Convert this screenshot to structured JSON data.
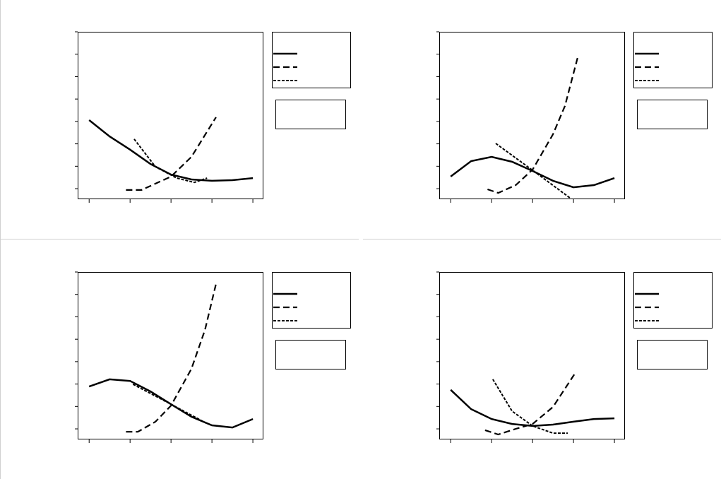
{
  "chart_data": [
    {
      "type": "line",
      "xlim": [
        -0.28,
        4.24
      ],
      "ylim": [
        -0.44,
        7
      ],
      "xticks": [
        0,
        1,
        2,
        3,
        4
      ],
      "yticks": [
        0,
        1,
        2,
        3,
        4,
        5,
        6,
        7
      ],
      "series": [
        {
          "color": "#000000",
          "dash": "solid",
          "x": [
            0,
            0.5,
            1,
            1.5,
            2,
            2.5,
            3,
            3.5,
            4
          ],
          "values": [
            3.06,
            2.33,
            1.74,
            1.1,
            0.63,
            0.41,
            0.35,
            0.38,
            0.47
          ]
        },
        {
          "color": "#000000",
          "dash": "dashed",
          "x": [
            0.9,
            1.28,
            2,
            2.5,
            3.1
          ],
          "values": [
            -0.06,
            -0.06,
            0.54,
            1.42,
            3.19
          ]
        },
        {
          "color": "#000000",
          "dash": "dotted",
          "x": [
            1.1,
            1.62,
            2.14,
            2.57,
            2.88
          ],
          "values": [
            2.21,
            0.98,
            0.47,
            0.28,
            0.47
          ]
        }
      ]
    },
    {
      "type": "line",
      "xlim": [
        -0.28,
        4.24
      ],
      "ylim": [
        -0.44,
        7
      ],
      "xticks": [
        0,
        1,
        2,
        3,
        4
      ],
      "yticks": [
        0,
        1,
        2,
        3,
        4,
        5,
        6,
        7
      ],
      "series": [
        {
          "color": "#000000",
          "dash": "solid",
          "x": [
            0,
            0.5,
            1,
            1.5,
            2,
            2.5,
            3,
            3.5,
            4
          ],
          "values": [
            0.54,
            1.23,
            1.42,
            1.2,
            0.79,
            0.35,
            0.06,
            0.16,
            0.47
          ]
        },
        {
          "color": "#000000",
          "dash": "dashed",
          "x": [
            0.9,
            1.16,
            1.59,
            2,
            2.5,
            2.79,
            3.1
          ],
          "values": [
            -0.03,
            -0.19,
            0.16,
            0.85,
            2.43,
            3.69,
            5.84
          ]
        },
        {
          "color": "#000000",
          "dash": "dotted",
          "x": [
            1.1,
            2,
            2.91
          ],
          "values": [
            2.02,
            0.82,
            -0.41
          ]
        }
      ]
    },
    {
      "type": "line",
      "xlim": [
        -0.28,
        4.24
      ],
      "ylim": [
        -0.44,
        7
      ],
      "xticks": [
        0,
        1,
        2,
        3,
        4
      ],
      "yticks": [
        0,
        1,
        2,
        3,
        4,
        5,
        6,
        7
      ],
      "series": [
        {
          "color": "#000000",
          "dash": "solid",
          "x": [
            0,
            0.5,
            1,
            1.5,
            2,
            2.5,
            3,
            3.5,
            4
          ],
          "values": [
            1.89,
            2.21,
            2.14,
            1.67,
            1.1,
            0.54,
            0.16,
            0.06,
            0.44
          ]
        },
        {
          "color": "#000000",
          "dash": "dashed",
          "x": [
            0.9,
            1.19,
            1.62,
            2,
            2.5,
            2.83,
            3.1
          ],
          "values": [
            -0.13,
            -0.13,
            0.32,
            1.04,
            2.68,
            4.42,
            6.47
          ]
        },
        {
          "color": "#000000",
          "dash": "dotted",
          "x": [
            1.07,
            2,
            2.9
          ],
          "values": [
            1.99,
            1.1,
            0.22
          ]
        }
      ]
    },
    {
      "type": "line",
      "xlim": [
        -0.28,
        4.24
      ],
      "ylim": [
        -0.44,
        7
      ],
      "xticks": [
        0,
        1,
        2,
        3,
        4
      ],
      "yticks": [
        0,
        1,
        2,
        3,
        4,
        5,
        6,
        7
      ],
      "series": [
        {
          "color": "#000000",
          "dash": "solid",
          "x": [
            0,
            0.5,
            1,
            1.5,
            2,
            2.5,
            3,
            3.5,
            4
          ],
          "values": [
            1.74,
            0.88,
            0.44,
            0.22,
            0.13,
            0.19,
            0.32,
            0.44,
            0.47
          ]
        },
        {
          "color": "#000000",
          "dash": "dashed",
          "x": [
            0.84,
            1.16,
            1.59,
            2,
            2.5,
            3.03
          ],
          "values": [
            -0.06,
            -0.25,
            0,
            0.22,
            0.98,
            2.46
          ]
        },
        {
          "color": "#000000",
          "dash": "dotted",
          "x": [
            1.03,
            1.5,
            2,
            2.5,
            2.86
          ],
          "values": [
            2.21,
            0.79,
            0.13,
            -0.19,
            -0.19
          ]
        }
      ]
    }
  ]
}
